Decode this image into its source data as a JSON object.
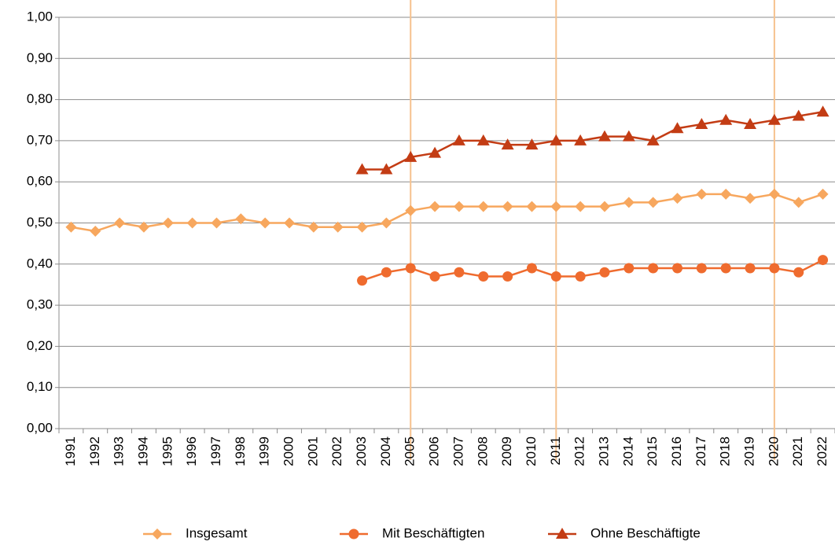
{
  "chart_data": {
    "type": "line",
    "categories": [
      "1991",
      "1992",
      "1993",
      "1994",
      "1995",
      "1996",
      "1997",
      "1998",
      "1999",
      "2000",
      "2001",
      "2002",
      "2003",
      "2004",
      "2005",
      "2006",
      "2007",
      "2008",
      "2009",
      "2010",
      "2011",
      "2012",
      "2013",
      "2014",
      "2015",
      "2016",
      "2017",
      "2018",
      "2019",
      "2020",
      "2021",
      "2022"
    ],
    "series": [
      {
        "name": "Insgesamt",
        "color": "#f7a75e",
        "marker": "diamond",
        "values": [
          0.49,
          0.48,
          0.5,
          0.49,
          0.5,
          0.5,
          0.5,
          0.51,
          0.5,
          0.5,
          0.49,
          0.49,
          0.49,
          0.5,
          0.53,
          0.54,
          0.54,
          0.54,
          0.54,
          0.54,
          0.54,
          0.54,
          0.54,
          0.55,
          0.55,
          0.56,
          0.57,
          0.57,
          0.56,
          0.57,
          0.55,
          0.57
        ]
      },
      {
        "name": "Mit Beschäftigten",
        "color": "#ef6b2e",
        "marker": "circle",
        "values": [
          null,
          null,
          null,
          null,
          null,
          null,
          null,
          null,
          null,
          null,
          null,
          null,
          0.36,
          0.38,
          0.39,
          0.37,
          0.38,
          0.37,
          0.37,
          0.39,
          0.37,
          0.37,
          0.38,
          0.39,
          0.39,
          0.39,
          0.39,
          0.39,
          0.39,
          0.39,
          0.38,
          0.41
        ]
      },
      {
        "name": "Ohne Beschäftigte",
        "color": "#c33c14",
        "marker": "triangle",
        "values": [
          null,
          null,
          null,
          null,
          null,
          null,
          null,
          null,
          null,
          null,
          null,
          null,
          0.63,
          0.63,
          0.66,
          0.67,
          0.7,
          0.7,
          0.69,
          0.69,
          0.7,
          0.7,
          0.71,
          0.71,
          0.7,
          0.73,
          0.74,
          0.75,
          0.74,
          0.75,
          0.76,
          0.77
        ]
      }
    ],
    "ylim": [
      0,
      1
    ],
    "yticks": [
      {
        "value": 0,
        "label": "0,00"
      },
      {
        "value": 0.1,
        "label": "0,10"
      },
      {
        "value": 0.2,
        "label": "0,20"
      },
      {
        "value": 0.3,
        "label": "0,30"
      },
      {
        "value": 0.4,
        "label": "0,40"
      },
      {
        "value": 0.5,
        "label": "0,50"
      },
      {
        "value": 0.6,
        "label": "0,60"
      },
      {
        "value": 0.7,
        "label": "0,70"
      },
      {
        "value": 0.8,
        "label": "0,80"
      },
      {
        "value": 0.9,
        "label": "0,90"
      },
      {
        "value": 1,
        "label": "1,00"
      }
    ],
    "grid": true,
    "vlines": [
      "2005",
      "2011",
      "2020"
    ],
    "vline_color": "#f6c28e",
    "legend": "bottom"
  }
}
